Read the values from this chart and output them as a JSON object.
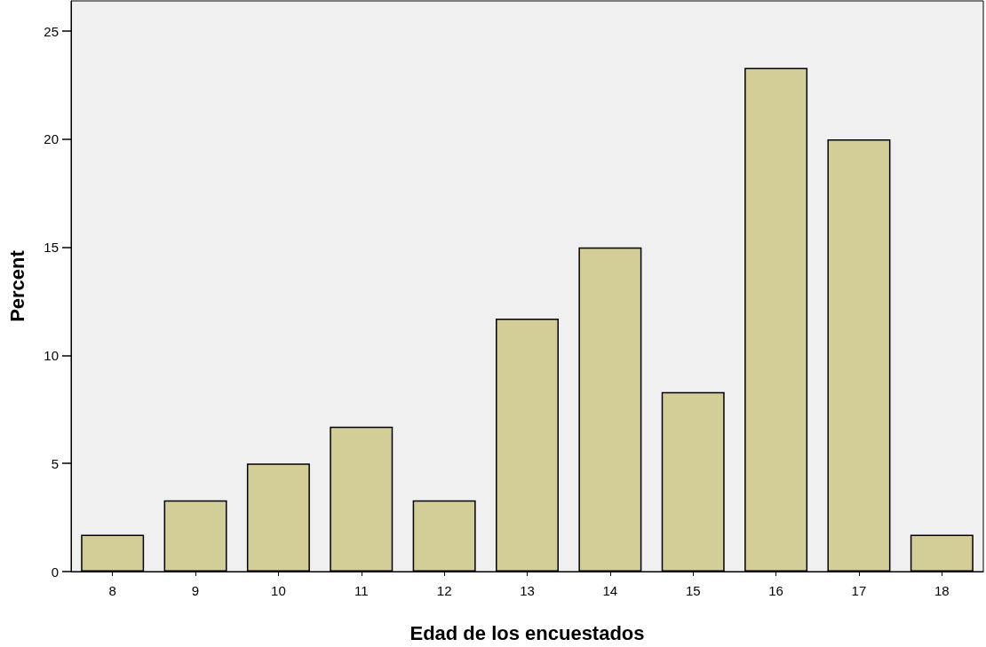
{
  "chart_data": {
    "type": "bar",
    "xlabel": "Edad de los encuestados",
    "ylabel": "Percent",
    "categories": [
      "8",
      "9",
      "10",
      "11",
      "12",
      "13",
      "14",
      "15",
      "16",
      "17",
      "18"
    ],
    "values": [
      1.7,
      3.3,
      5,
      6.7,
      3.3,
      11.7,
      15,
      8.3,
      23.3,
      20,
      1.7
    ],
    "color": "#d3ce97",
    "ylim": [
      0,
      26.4
    ],
    "yticks": [
      0,
      5,
      10,
      15,
      20,
      25
    ],
    "grid": false
  }
}
